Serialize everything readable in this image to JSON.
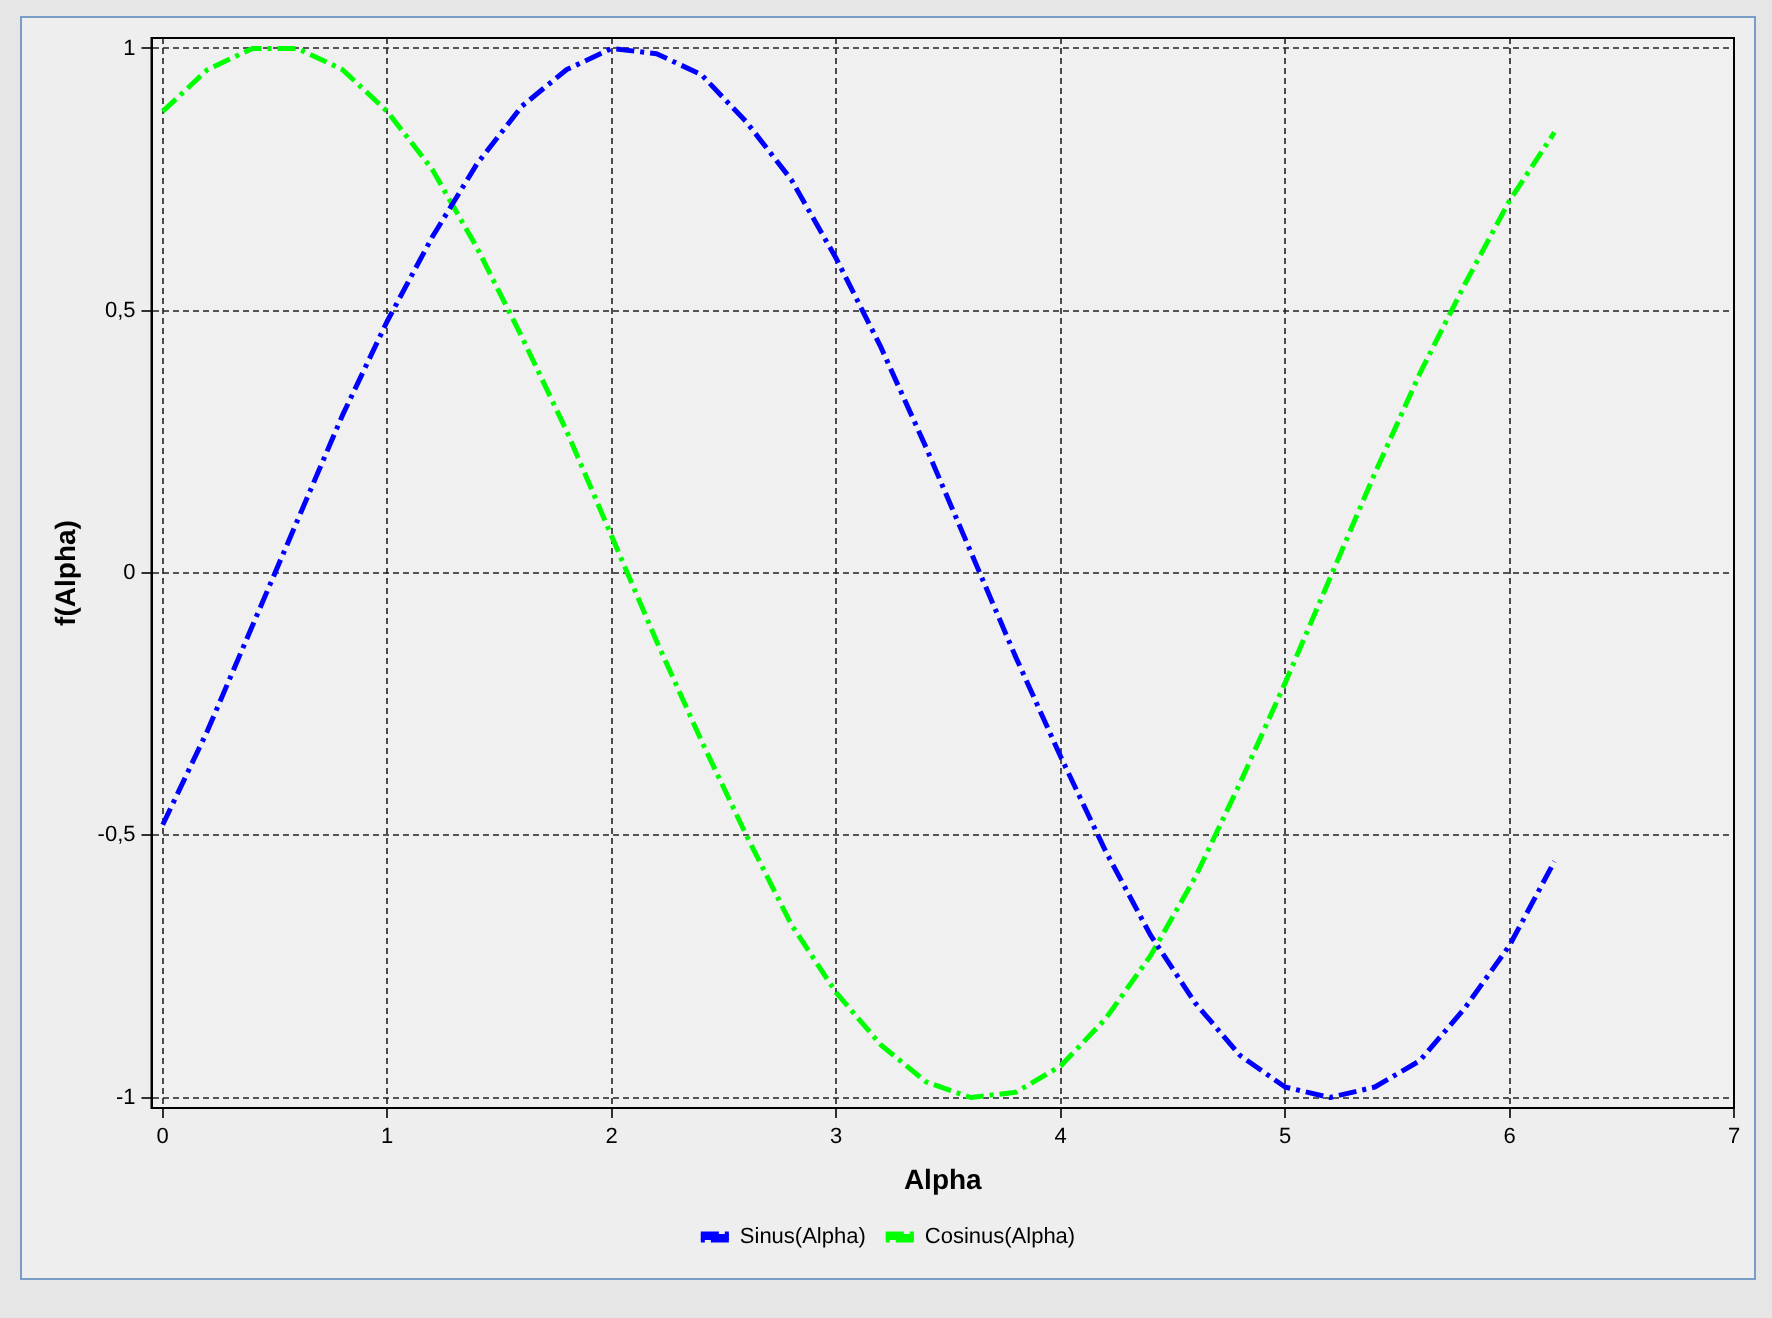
{
  "chart_data": {
    "type": "line",
    "xlabel": "Alpha",
    "ylabel": "f(Alpha)",
    "x": [
      0,
      0.2,
      0.4,
      0.6,
      0.8,
      1,
      1.2,
      1.4,
      1.6,
      1.8,
      2,
      2.2,
      2.4,
      2.6,
      2.8,
      3,
      3.2,
      3.4,
      3.6,
      3.8,
      4,
      4.2,
      4.4,
      4.6,
      4.8,
      5,
      5.2,
      5.4,
      5.6,
      5.8,
      6,
      6.2
    ],
    "series": [
      {
        "name": "Sinus(Alpha)",
        "color": "#0000ff",
        "values": [
          -0.48,
          -0.3,
          -0.1,
          0.1,
          0.3,
          0.48,
          0.64,
          0.78,
          0.89,
          0.96,
          1.0,
          0.99,
          0.95,
          0.86,
          0.75,
          0.6,
          0.43,
          0.24,
          0.04,
          -0.16,
          -0.35,
          -0.53,
          -0.69,
          -0.82,
          -0.92,
          -0.98,
          -1.0,
          -0.98,
          -0.93,
          -0.83,
          -0.71,
          -0.55
        ]
      },
      {
        "name": "Cosinus(Alpha)",
        "color": "#00ff00",
        "values": [
          0.88,
          0.96,
          1.0,
          1.0,
          0.96,
          0.88,
          0.77,
          0.62,
          0.45,
          0.27,
          0.07,
          -0.13,
          -0.32,
          -0.5,
          -0.67,
          -0.8,
          -0.9,
          -0.97,
          -1.0,
          -0.99,
          -0.94,
          -0.85,
          -0.73,
          -0.58,
          -0.4,
          -0.21,
          -0.01,
          0.19,
          0.38,
          0.55,
          0.71,
          0.84
        ]
      }
    ],
    "xlim": [
      -0.05,
      7
    ],
    "xticks": [
      0,
      1,
      2,
      3,
      4,
      5,
      6,
      7
    ],
    "ylim": [
      -1.02,
      1.02
    ],
    "yticks": [
      {
        "value": -1,
        "label": "-1"
      },
      {
        "value": -0.5,
        "label": "-0,5"
      },
      {
        "value": 0,
        "label": "0"
      },
      {
        "value": 0.5,
        "label": "0,5"
      },
      {
        "value": 1,
        "label": "1"
      }
    ],
    "grid": true,
    "legend": "bottom",
    "marker": "none",
    "line_style": "dashed"
  }
}
